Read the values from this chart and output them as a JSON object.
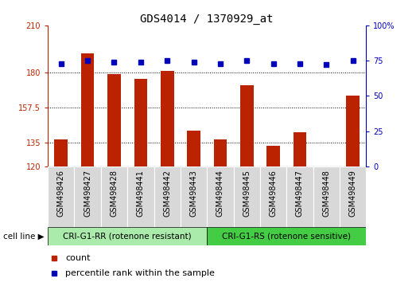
{
  "title": "GDS4014 / 1370929_at",
  "samples": [
    "GSM498426",
    "GSM498427",
    "GSM498428",
    "GSM498441",
    "GSM498442",
    "GSM498443",
    "GSM498444",
    "GSM498445",
    "GSM498446",
    "GSM498447",
    "GSM498448",
    "GSM498449"
  ],
  "counts": [
    137,
    192,
    179,
    176,
    181,
    143,
    137,
    172,
    133,
    142,
    120,
    165
  ],
  "percentiles": [
    73,
    75,
    74,
    74,
    75,
    74,
    73,
    75,
    73,
    73,
    72,
    75
  ],
  "bar_color": "#bb2200",
  "dot_color": "#0000bb",
  "left_ylim": [
    120,
    210
  ],
  "right_ylim": [
    0,
    100
  ],
  "left_yticks": [
    120,
    135,
    157.5,
    180,
    210
  ],
  "left_yticklabels": [
    "120",
    "135",
    "157.5",
    "180",
    "210"
  ],
  "right_yticks": [
    0,
    25,
    50,
    75,
    100
  ],
  "right_yticklabels": [
    "0",
    "25",
    "50",
    "75",
    "100%"
  ],
  "hlines": [
    135,
    157.5,
    180
  ],
  "group1_label": "CRI-G1-RR (rotenone resistant)",
  "group2_label": "CRI-G1-RS (rotenone sensitive)",
  "group1_count": 6,
  "group2_count": 6,
  "cell_line_label": "cell line",
  "legend_count_label": "count",
  "legend_pct_label": "percentile rank within the sample",
  "plot_bg_color": "#ffffff",
  "tick_box_color": "#d8d8d8",
  "group1_color": "#aaeaaa",
  "group2_color": "#44cc44",
  "title_fontsize": 10,
  "tick_fontsize": 7,
  "bar_width": 0.5
}
